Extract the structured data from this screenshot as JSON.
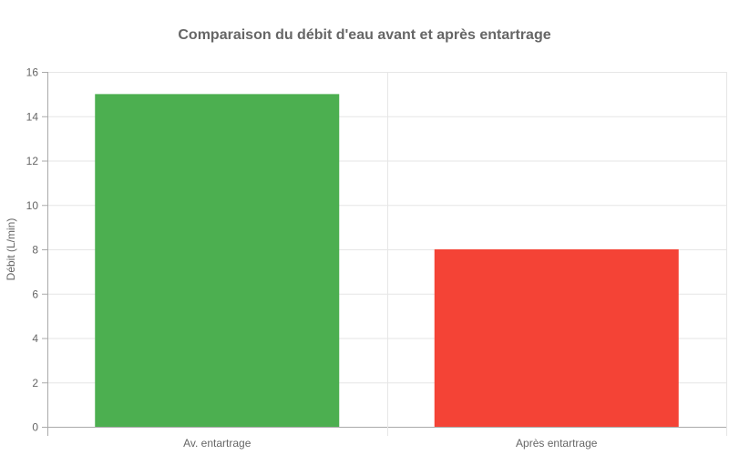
{
  "chart_data": {
    "type": "bar",
    "title": "Comparaison du débit d'eau avant et après entartrage",
    "xlabel": "",
    "ylabel": "Débit (L/min)",
    "categories": [
      "Av. entartrage",
      "Après entartrage"
    ],
    "values": [
      15,
      8
    ],
    "colors": [
      "#4caf50",
      "#f44336"
    ],
    "ylim": [
      0,
      16
    ],
    "yticks": [
      0,
      2,
      4,
      6,
      8,
      10,
      12,
      14,
      16
    ],
    "grid": true,
    "legend": null
  }
}
